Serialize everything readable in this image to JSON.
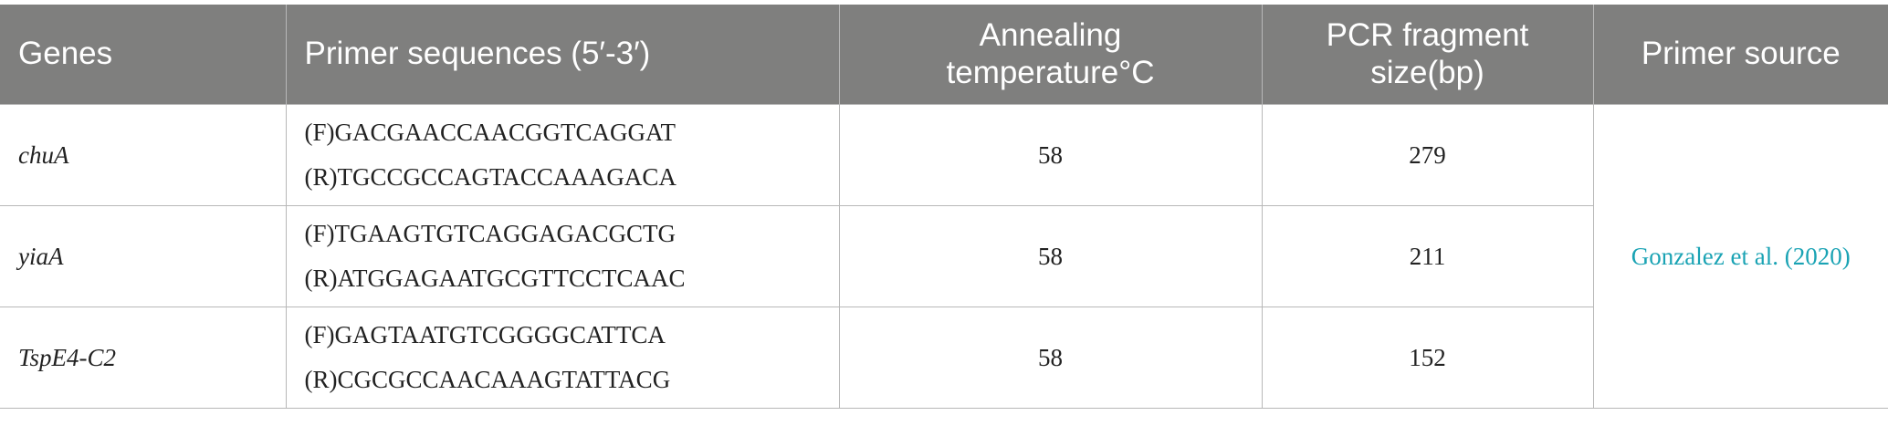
{
  "table": {
    "headers": [
      "Genes",
      "Primer sequences (5′-3′)",
      "Annealing temperature°C",
      "PCR fragment size(bp)",
      "Primer source"
    ],
    "rows": [
      {
        "gene": "chuA",
        "primers": [
          "(F)GACGAACCAACGGTCAGGAT",
          "(R)TGCCGCCAGTACCAAAGACA"
        ],
        "temperature": 58,
        "size": 279
      },
      {
        "gene": "yiaA",
        "primers": [
          "(F)TGAAGTGTCAGGAGACGCTG",
          "(R)ATGGAGAATGCGTTCCTCAAC"
        ],
        "temperature": 58,
        "size": 211
      },
      {
        "gene": "TspE4-C2",
        "primers": [
          "(F)GAGTAATGTCGGGGCATTCA",
          "(R)CGCGCCAACAAAGTATTACG"
        ],
        "temperature": 58,
        "size": 152
      }
    ],
    "source": "Gonzalez et al. (2020)"
  }
}
